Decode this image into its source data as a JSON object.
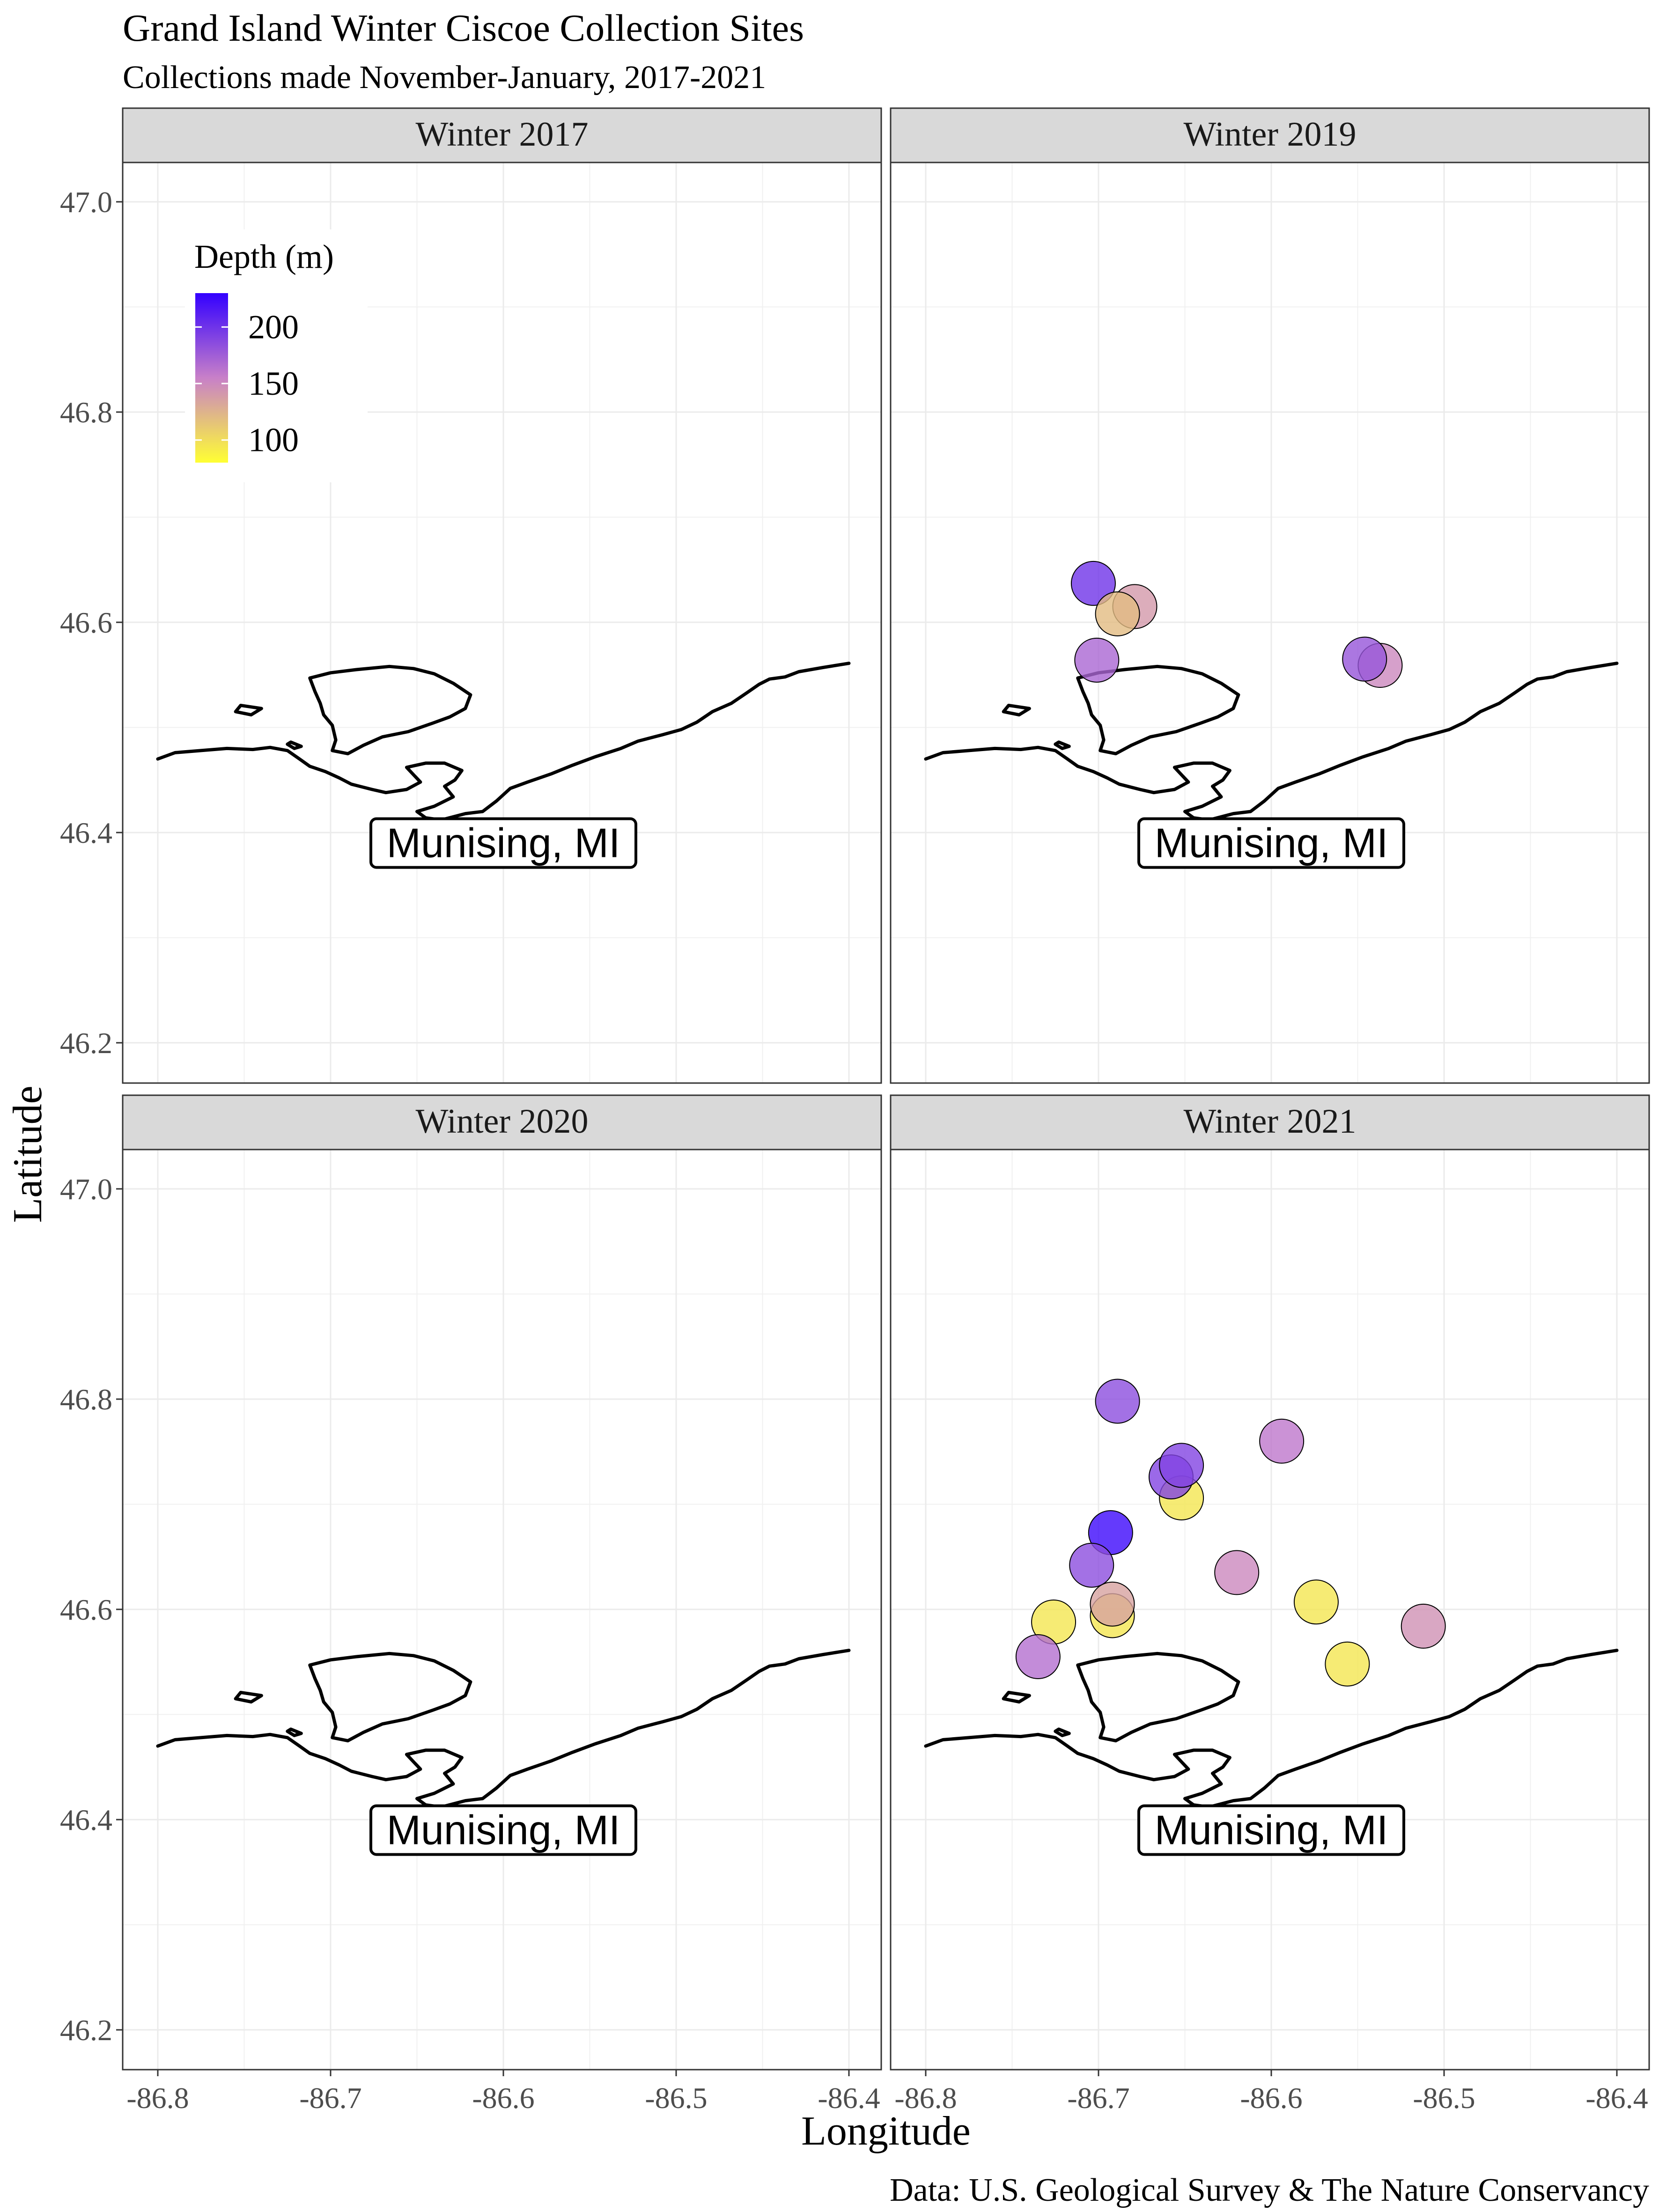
{
  "title": "Grand Island Winter Ciscoe Collection Sites",
  "subtitle": "Collections made November-January, 2017-2021",
  "caption": "Data: U.S. Geological Survey & The Nature Conservancy",
  "xlabel": "Longitude",
  "ylabel": "Latitude",
  "legend": {
    "title": "Depth (m)",
    "ticks": [
      "200",
      "150",
      "100"
    ],
    "tick_values": [
      200,
      150,
      100
    ],
    "range": [
      80,
      230
    ],
    "colors": {
      "low": "#ffff33",
      "mid": "#c880c8",
      "high": "#3300ff"
    },
    "position": "top-left inside first panel"
  },
  "x_ticks": [
    "-86.8",
    "-86.7",
    "-86.6",
    "-86.5",
    "-86.4"
  ],
  "y_ticks": [
    "47.0",
    "46.8",
    "46.6",
    "46.4",
    "46.2"
  ],
  "city_label": "Munising, MI",
  "chart_data": {
    "type": "scatter",
    "xlim": [
      -86.82,
      -86.38
    ],
    "ylim": [
      46.155,
      47.03
    ],
    "grid": true,
    "facets": [
      {
        "name": "Winter 2017",
        "points": []
      },
      {
        "name": "Winter 2019",
        "points": [
          {
            "lon": -86.703,
            "lat": 46.637,
            "depth": 200
          },
          {
            "lon": -86.679,
            "lat": 46.615,
            "depth": 140
          },
          {
            "lon": -86.689,
            "lat": 46.608,
            "depth": 120
          },
          {
            "lon": -86.701,
            "lat": 46.564,
            "depth": 170
          },
          {
            "lon": -86.537,
            "lat": 46.559,
            "depth": 150
          },
          {
            "lon": -86.546,
            "lat": 46.565,
            "depth": 180
          }
        ]
      },
      {
        "name": "Winter 2020",
        "points": []
      },
      {
        "name": "Winter 2021",
        "points": [
          {
            "lon": -86.689,
            "lat": 46.798,
            "depth": 185
          },
          {
            "lon": -86.594,
            "lat": 46.76,
            "depth": 160
          },
          {
            "lon": -86.652,
            "lat": 46.706,
            "depth": 95
          },
          {
            "lon": -86.658,
            "lat": 46.726,
            "depth": 190
          },
          {
            "lon": -86.652,
            "lat": 46.737,
            "depth": 190
          },
          {
            "lon": -86.693,
            "lat": 46.673,
            "depth": 225
          },
          {
            "lon": -86.704,
            "lat": 46.642,
            "depth": 185
          },
          {
            "lon": -86.62,
            "lat": 46.635,
            "depth": 150
          },
          {
            "lon": -86.574,
            "lat": 46.607,
            "depth": 95
          },
          {
            "lon": -86.512,
            "lat": 46.584,
            "depth": 145
          },
          {
            "lon": -86.692,
            "lat": 46.594,
            "depth": 95
          },
          {
            "lon": -86.692,
            "lat": 46.605,
            "depth": 135
          },
          {
            "lon": -86.726,
            "lat": 46.588,
            "depth": 95
          },
          {
            "lon": -86.735,
            "lat": 46.555,
            "depth": 165
          },
          {
            "lon": -86.556,
            "lat": 46.548,
            "depth": 95
          }
        ]
      }
    ]
  }
}
